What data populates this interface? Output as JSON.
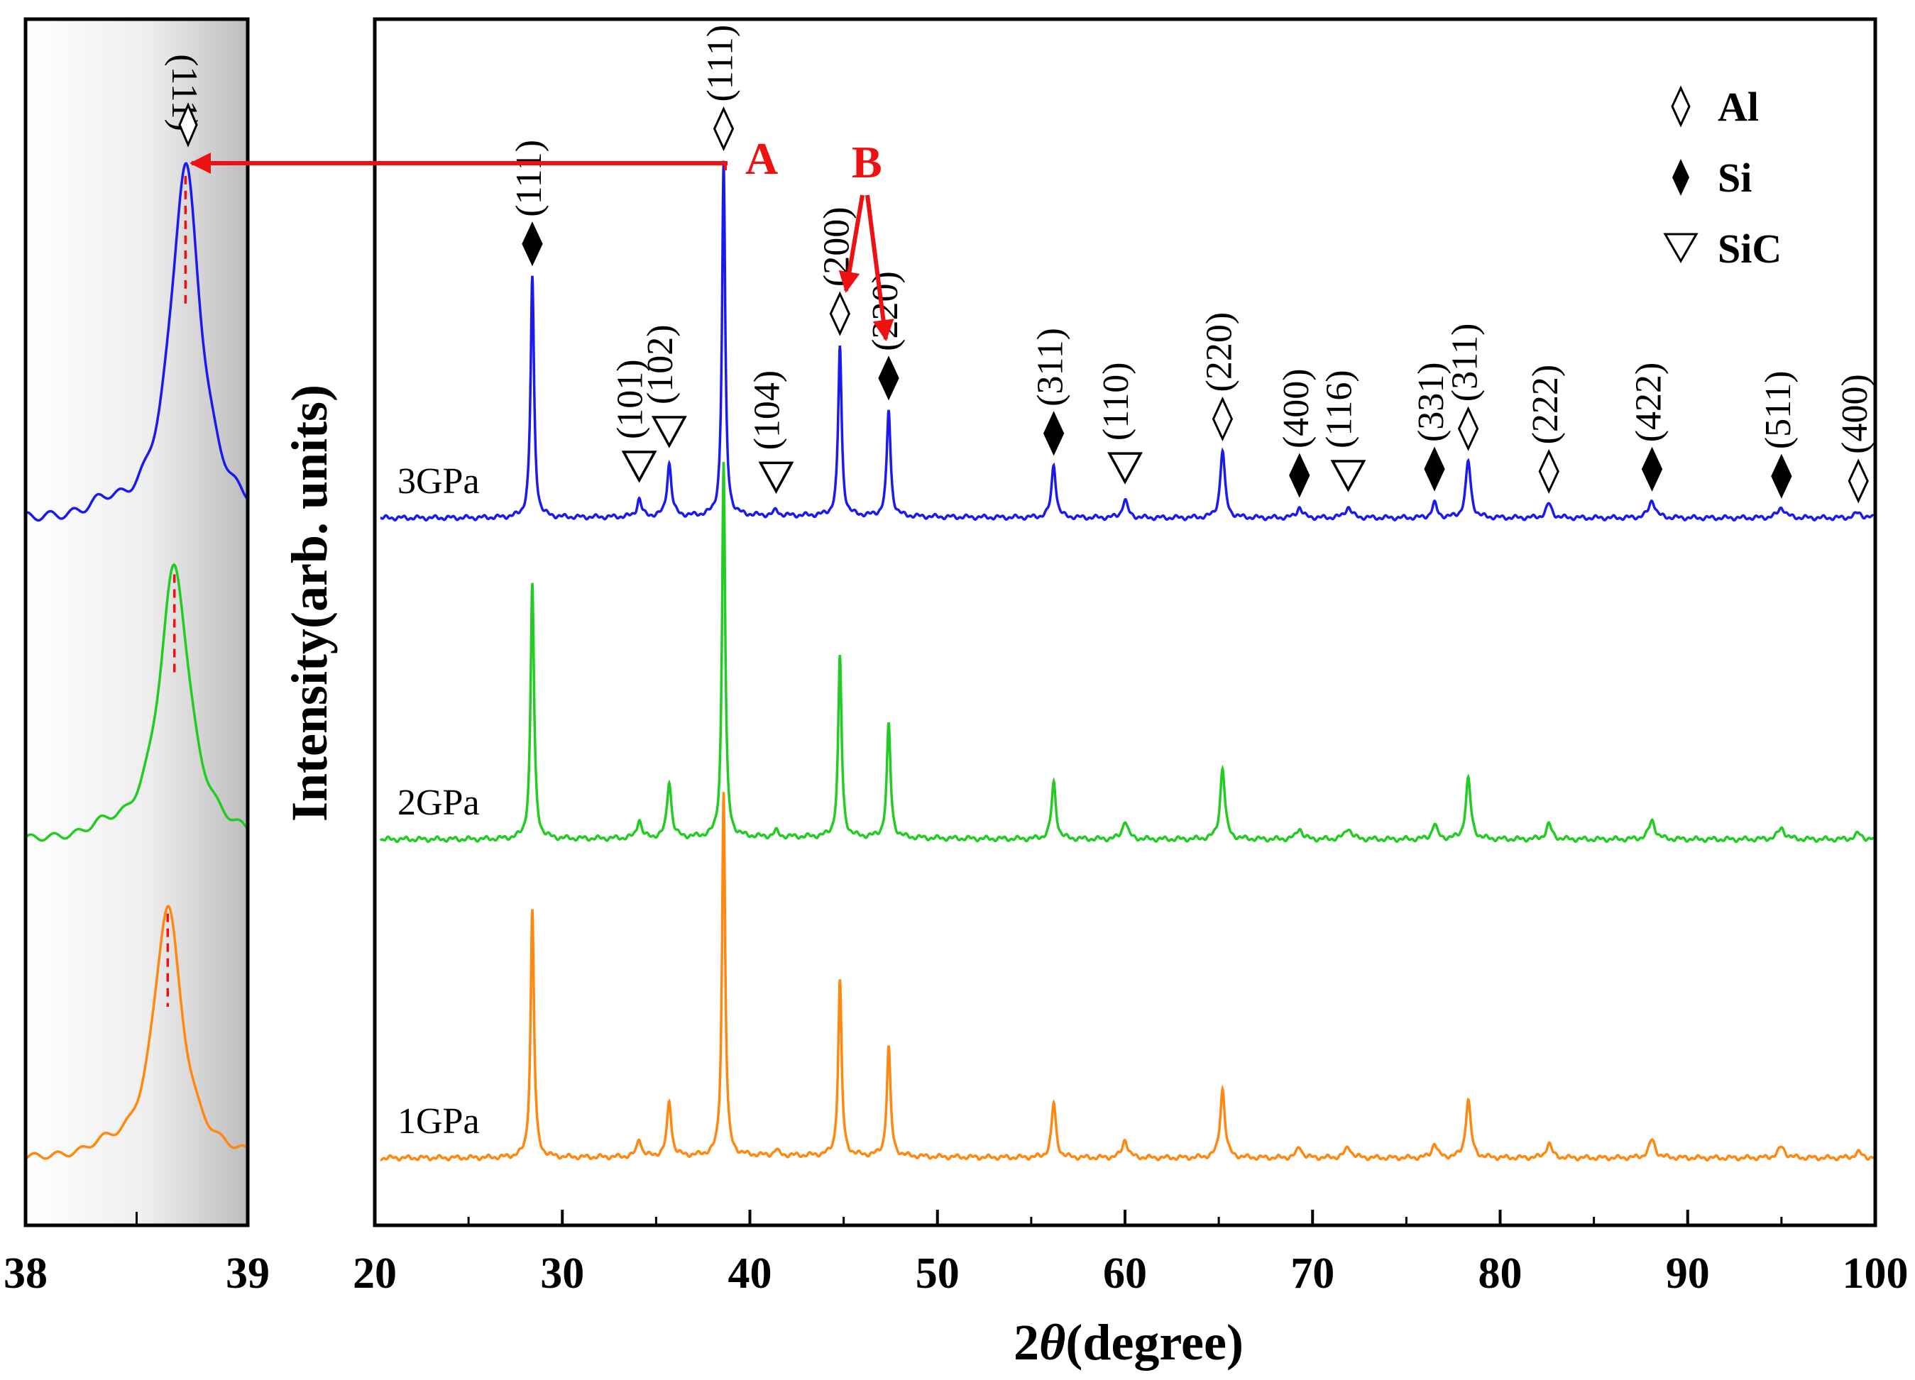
{
  "chart_data": {
    "type": "line",
    "xlabel_prefix": "2",
    "xlabel_symbol": "θ",
    "xlabel_suffix": "(degree)",
    "ylabel": "Intensity(arb. units)",
    "xlim": [
      20,
      100
    ],
    "xticks": [
      "20",
      "30",
      "40",
      "50",
      "60",
      "70",
      "80",
      "90",
      "100"
    ],
    "inset": {
      "xlim": [
        38,
        39
      ],
      "xticks": [
        "38",
        "39"
      ],
      "peak_label": "(111)",
      "peak_centers": [
        {
          "series": "3GPa",
          "x": 38.72
        },
        {
          "series": "2GPa",
          "x": 38.67
        },
        {
          "series": "1GPa",
          "x": 38.64
        }
      ]
    },
    "series": [
      {
        "name": "3GPa",
        "color": "#1a1aee",
        "offset": 2
      },
      {
        "name": "2GPa",
        "color": "#22cc22",
        "offset": 1
      },
      {
        "name": "1GPa",
        "color": "#ff8811",
        "offset": 0
      }
    ],
    "peaks": [
      {
        "x": 28.4,
        "height": 0.68,
        "width": 0.11,
        "phase": "Si",
        "hkl": "(111)"
      },
      {
        "x": 34.1,
        "height": 0.05,
        "width": 0.14,
        "phase": "SiC",
        "hkl": "(101)"
      },
      {
        "x": 35.7,
        "height": 0.15,
        "width": 0.14,
        "phase": "SiC",
        "hkl": "(102)"
      },
      {
        "x": 38.6,
        "height": 1.0,
        "width": 0.1,
        "phase": "Al",
        "hkl": "(111)"
      },
      {
        "x": 41.4,
        "height": 0.015,
        "width": 0.15,
        "phase": "SiC",
        "hkl": "(104)"
      },
      {
        "x": 44.8,
        "height": 0.48,
        "width": 0.11,
        "phase": "Al",
        "hkl": "(200)"
      },
      {
        "x": 47.4,
        "height": 0.3,
        "width": 0.12,
        "phase": "Si",
        "hkl": "(220)"
      },
      {
        "x": 56.2,
        "height": 0.15,
        "width": 0.14,
        "phase": "Si",
        "hkl": "(311)"
      },
      {
        "x": 60.0,
        "height": 0.05,
        "width": 0.17,
        "phase": "SiC",
        "hkl": "(110)"
      },
      {
        "x": 65.2,
        "height": 0.19,
        "width": 0.15,
        "phase": "Al",
        "hkl": "(220)"
      },
      {
        "x": 69.3,
        "height": 0.03,
        "width": 0.17,
        "phase": "Si",
        "hkl": "(400)"
      },
      {
        "x": 71.9,
        "height": 0.03,
        "width": 0.2,
        "phase": "SiC",
        "hkl": "(116)"
      },
      {
        "x": 76.5,
        "height": 0.04,
        "width": 0.16,
        "phase": "Si",
        "hkl": "(331)"
      },
      {
        "x": 78.3,
        "height": 0.16,
        "width": 0.16,
        "phase": "Al",
        "hkl": "(311)"
      },
      {
        "x": 82.6,
        "height": 0.04,
        "width": 0.18,
        "phase": "Al",
        "hkl": "(222)"
      },
      {
        "x": 88.1,
        "height": 0.05,
        "width": 0.2,
        "phase": "Si",
        "hkl": "(422)"
      },
      {
        "x": 95.0,
        "height": 0.03,
        "width": 0.22,
        "phase": "Si",
        "hkl": "(511)"
      },
      {
        "x": 99.1,
        "height": 0.015,
        "width": 0.22,
        "phase": "Al",
        "hkl": "(400)"
      }
    ],
    "legend": [
      {
        "symbol": "open-diamond",
        "label": "Al"
      },
      {
        "symbol": "filled-diamond",
        "label": "Si"
      },
      {
        "symbol": "open-triangle",
        "label": "SiC"
      }
    ],
    "annotations": [
      {
        "label": "A",
        "target": "Al (111) peak of 3GPa, linked to inset"
      },
      {
        "label": "B",
        "target": "Al (200) and Si (220) peaks"
      }
    ]
  }
}
